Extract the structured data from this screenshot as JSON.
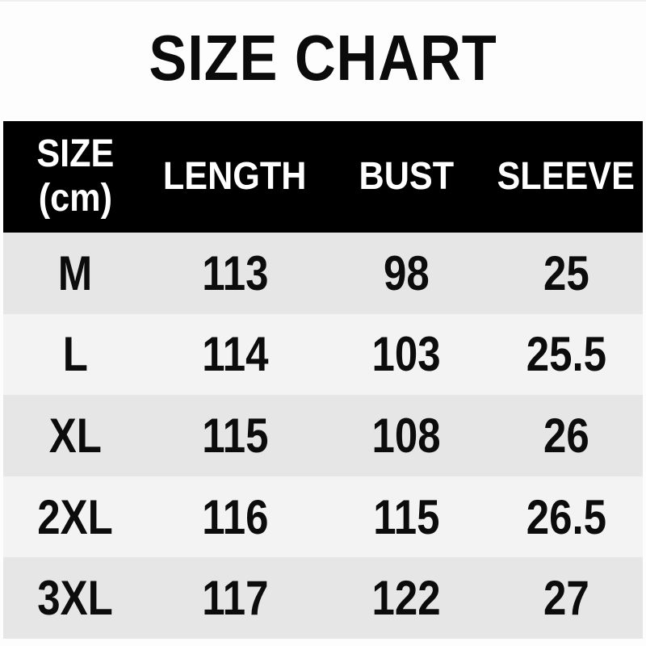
{
  "page": {
    "title": "SIZE CHART"
  },
  "table": {
    "header": {
      "size": "SIZE",
      "size_unit": "(cm)",
      "length": "LENGTH",
      "bust": "BUST",
      "sleeve": "SLEEVE"
    },
    "rows": [
      [
        "M",
        "113",
        "98",
        "25"
      ],
      [
        "L",
        "114",
        "103",
        "25.5"
      ],
      [
        "XL",
        "115",
        "108",
        "26"
      ],
      [
        "2XL",
        "116",
        "115",
        "26.5"
      ],
      [
        "3XL",
        "117",
        "122",
        "27"
      ]
    ],
    "colors": {
      "header_bg": "#000000",
      "header_text": "#ffffff",
      "row_gray": "#e6e6e6",
      "row_light": "#f3f3f3",
      "body_text": "#0c0c0c"
    }
  },
  "chart_data": {
    "type": "table",
    "title": "SIZE CHART",
    "unit": "cm",
    "columns": [
      "SIZE (cm)",
      "LENGTH",
      "BUST",
      "SLEEVE"
    ],
    "rows": [
      [
        "M",
        113,
        98,
        25
      ],
      [
        "L",
        114,
        103,
        25.5
      ],
      [
        "XL",
        115,
        108,
        26
      ],
      [
        "2XL",
        116,
        115,
        26.5
      ],
      [
        "3XL",
        117,
        122,
        27
      ]
    ]
  }
}
